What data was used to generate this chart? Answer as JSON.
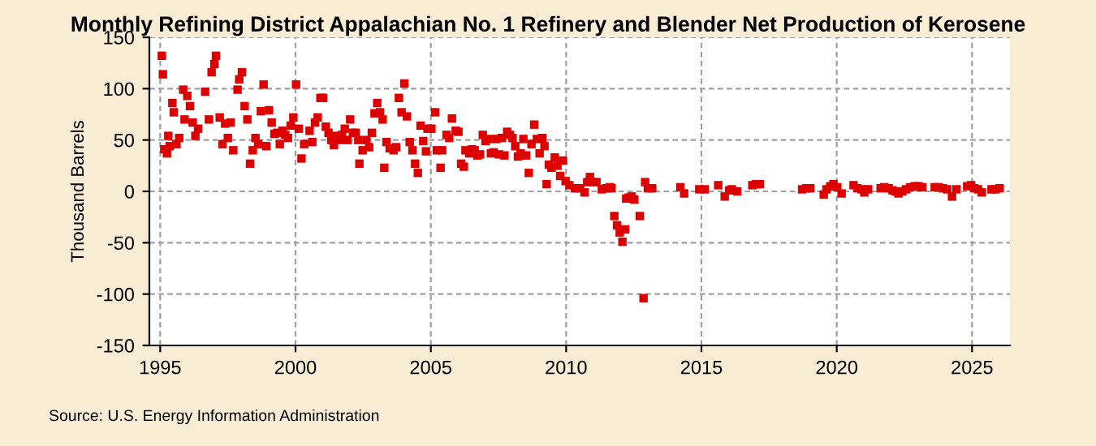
{
  "chart_data": {
    "type": "scatter",
    "title": "Monthly Refining District Appalachian No. 1 Refinery and Blender Net Production of Kerosene",
    "ylabel": "Thousand Barrels",
    "annotations": [
      "Source: U.S. Energy Information Administration"
    ],
    "marker": "square",
    "grid": true,
    "xlim": [
      1994.6,
      2026.4
    ],
    "xticks": [
      1995,
      2000,
      2005,
      2010,
      2015,
      2020,
      2025
    ],
    "ylim": [
      -150,
      150
    ],
    "yticks": [
      -150,
      -100,
      -50,
      0,
      50,
      100,
      150
    ],
    "series": [
      {
        "color": "#dd0000",
        "x": [
          1995.06,
          1995.1,
          1995.15,
          1995.25,
          1995.3,
          1995.35,
          1995.45,
          1995.5,
          1995.6,
          1995.7,
          1995.85,
          1995.9,
          1996.0,
          1996.1,
          1996.2,
          1996.3,
          1996.4,
          1996.66,
          1996.8,
          1996.9,
          1997.0,
          1997.06,
          1997.2,
          1997.3,
          1997.4,
          1997.5,
          1997.6,
          1997.7,
          1997.86,
          1997.92,
          1998.02,
          1998.12,
          1998.22,
          1998.32,
          1998.42,
          1998.52,
          1998.62,
          1998.72,
          1998.82,
          1998.92,
          1999.02,
          1999.12,
          1999.22,
          1999.32,
          1999.42,
          1999.52,
          1999.62,
          1999.72,
          1999.82,
          1999.92,
          2000.02,
          2000.12,
          2000.22,
          2000.32,
          2000.52,
          2000.62,
          2000.72,
          2000.82,
          2000.92,
          2001.02,
          2001.12,
          2001.22,
          2001.32,
          2001.42,
          2001.52,
          2001.62,
          2001.72,
          2001.82,
          2001.92,
          2002.02,
          2002.12,
          2002.22,
          2002.32,
          2002.36,
          2002.48,
          2002.62,
          2002.72,
          2002.82,
          2002.92,
          2003.02,
          2003.12,
          2003.22,
          2003.28,
          2003.36,
          2003.48,
          2003.62,
          2003.72,
          2003.82,
          2003.92,
          2004.02,
          2004.12,
          2004.22,
          2004.32,
          2004.42,
          2004.52,
          2004.62,
          2004.72,
          2004.82,
          2004.88,
          2005.02,
          2005.16,
          2005.22,
          2005.36,
          2005.42,
          2005.58,
          2005.68,
          2005.78,
          2005.92,
          2006.02,
          2006.12,
          2006.22,
          2006.28,
          2006.42,
          2006.52,
          2006.62,
          2006.72,
          2006.82,
          2006.92,
          2007.02,
          2007.12,
          2007.22,
          2007.32,
          2007.42,
          2007.52,
          2007.62,
          2007.72,
          2007.82,
          2007.92,
          2008.02,
          2008.12,
          2008.22,
          2008.32,
          2008.42,
          2008.52,
          2008.62,
          2008.72,
          2008.82,
          2008.92,
          2009.02,
          2009.12,
          2009.2,
          2009.28,
          2009.36,
          2009.46,
          2009.58,
          2009.68,
          2009.78,
          2009.88,
          2009.98,
          2010.12,
          2010.32,
          2010.52,
          2010.68,
          2010.78,
          2010.88,
          2010.98,
          2011.12,
          2011.32,
          2011.48,
          2011.62,
          2011.68,
          2011.78,
          2011.88,
          2011.98,
          2012.08,
          2012.18,
          2012.22,
          2012.32,
          2012.42,
          2012.52,
          2012.72,
          2012.86,
          2012.92,
          2013.02,
          2013.18,
          2014.22,
          2014.36,
          2014.92,
          2015.12,
          2015.62,
          2015.86,
          2016.02,
          2016.12,
          2016.32,
          2016.88,
          2017.02,
          2017.16,
          2018.72,
          2018.88,
          2019.02,
          2019.52,
          2019.62,
          2019.76,
          2019.88,
          2020.02,
          2020.18,
          2020.62,
          2020.76,
          2020.92,
          2021.02,
          2021.16,
          2021.62,
          2021.76,
          2021.92,
          2022.06,
          2022.18,
          2022.28,
          2022.42,
          2022.56,
          2022.72,
          2022.88,
          2023.02,
          2023.16,
          2023.62,
          2023.76,
          2023.92,
          2024.08,
          2024.26,
          2024.42,
          2024.82,
          2024.96,
          2025.08,
          2025.22,
          2025.36,
          2025.72,
          2025.86,
          2026.02
        ],
        "values": [
          132,
          114,
          41,
          37,
          54,
          44,
          86,
          77,
          46,
          52,
          99,
          70,
          93,
          83,
          67,
          54,
          61,
          97,
          70,
          116,
          124,
          132,
          72,
          46,
          66,
          52,
          67,
          40,
          99,
          109,
          116,
          83,
          70,
          27,
          40,
          52,
          46,
          78,
          104,
          44,
          79,
          67,
          56,
          57,
          46,
          59,
          55,
          52,
          64,
          72,
          104,
          61,
          32,
          46,
          59,
          48,
          67,
          72,
          91,
          91,
          63,
          57,
          50,
          45,
          54,
          50,
          55,
          61,
          50,
          70,
          57,
          57,
          50,
          27,
          40,
          50,
          43,
          57,
          76,
          86,
          77,
          70,
          23,
          48,
          42,
          40,
          43,
          91,
          77,
          105,
          73,
          48,
          40,
          27,
          18,
          64,
          49,
          39,
          61,
          61,
          77,
          40,
          23,
          40,
          55,
          52,
          71,
          59,
          58,
          27,
          24,
          40,
          37,
          41,
          40,
          35,
          36,
          55,
          49,
          51,
          37,
          38,
          51,
          36,
          52,
          35,
          58,
          55,
          52,
          44,
          34,
          37,
          51,
          35,
          18,
          46,
          65,
          51,
          37,
          52,
          44,
          7,
          26,
          23,
          33,
          25,
          15,
          30,
          10,
          6,
          3,
          3,
          -1,
          9,
          14,
          9,
          9,
          2,
          3,
          4,
          3,
          -24,
          -33,
          -40,
          -49,
          -37,
          -7,
          -6,
          -5,
          -8,
          -24,
          -104,
          9,
          3,
          3,
          4,
          -2,
          2,
          2,
          6,
          -5,
          1,
          2,
          0,
          6,
          7,
          7,
          2,
          3,
          3,
          -3,
          2,
          5,
          7,
          4,
          -2,
          6,
          3,
          2,
          -1,
          2,
          3,
          4,
          3,
          1,
          0,
          -2,
          0,
          2,
          4,
          5,
          5,
          4,
          4,
          4,
          3,
          2,
          -5,
          2,
          5,
          6,
          3,
          2,
          -1,
          2,
          2,
          3
        ]
      }
    ]
  }
}
